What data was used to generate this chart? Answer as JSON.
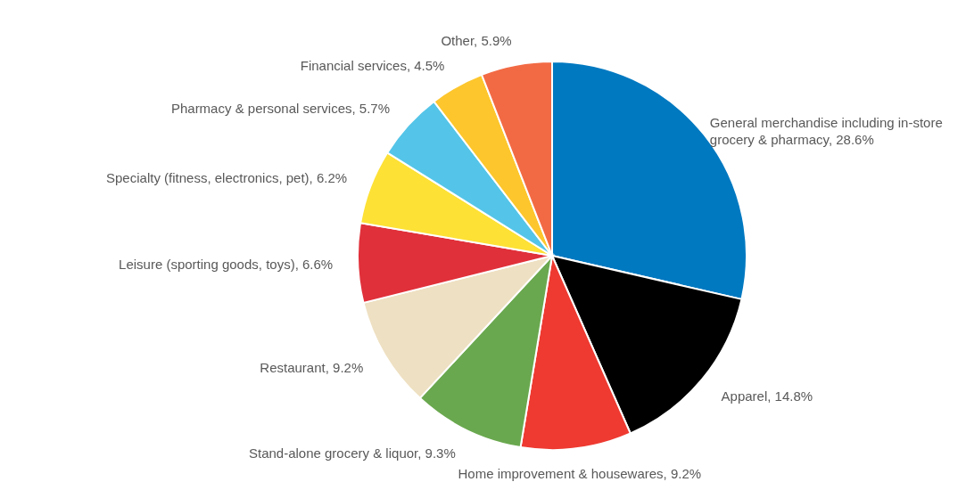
{
  "chart_data": {
    "type": "pie",
    "categories": [
      "General merchandise including in-store grocery & pharmacy",
      "Apparel",
      "Home improvement & housewares",
      "Stand-alone grocery & liquor",
      "Restaurant",
      "Leisure (sporting goods, toys)",
      "Specialty (fitness, electronics, pet)",
      "Pharmacy & personal services",
      "Financial services",
      "Other"
    ],
    "values": [
      28.6,
      14.8,
      9.2,
      9.3,
      9.2,
      6.6,
      6.2,
      5.7,
      4.5,
      5.9
    ],
    "value_labels": [
      "28.6%",
      "14.8%",
      "9.2%",
      "9.3%",
      "9.2%",
      "6.6%",
      "6.2%",
      "5.7%",
      "4.5%",
      "5.9%"
    ],
    "colors": [
      "#0079c1",
      "#000000",
      "#ee3a31",
      "#6aa84f",
      "#eee0c2",
      "#e0303a",
      "#fde135",
      "#54c5e8",
      "#fdc62c",
      "#f26a44"
    ]
  }
}
